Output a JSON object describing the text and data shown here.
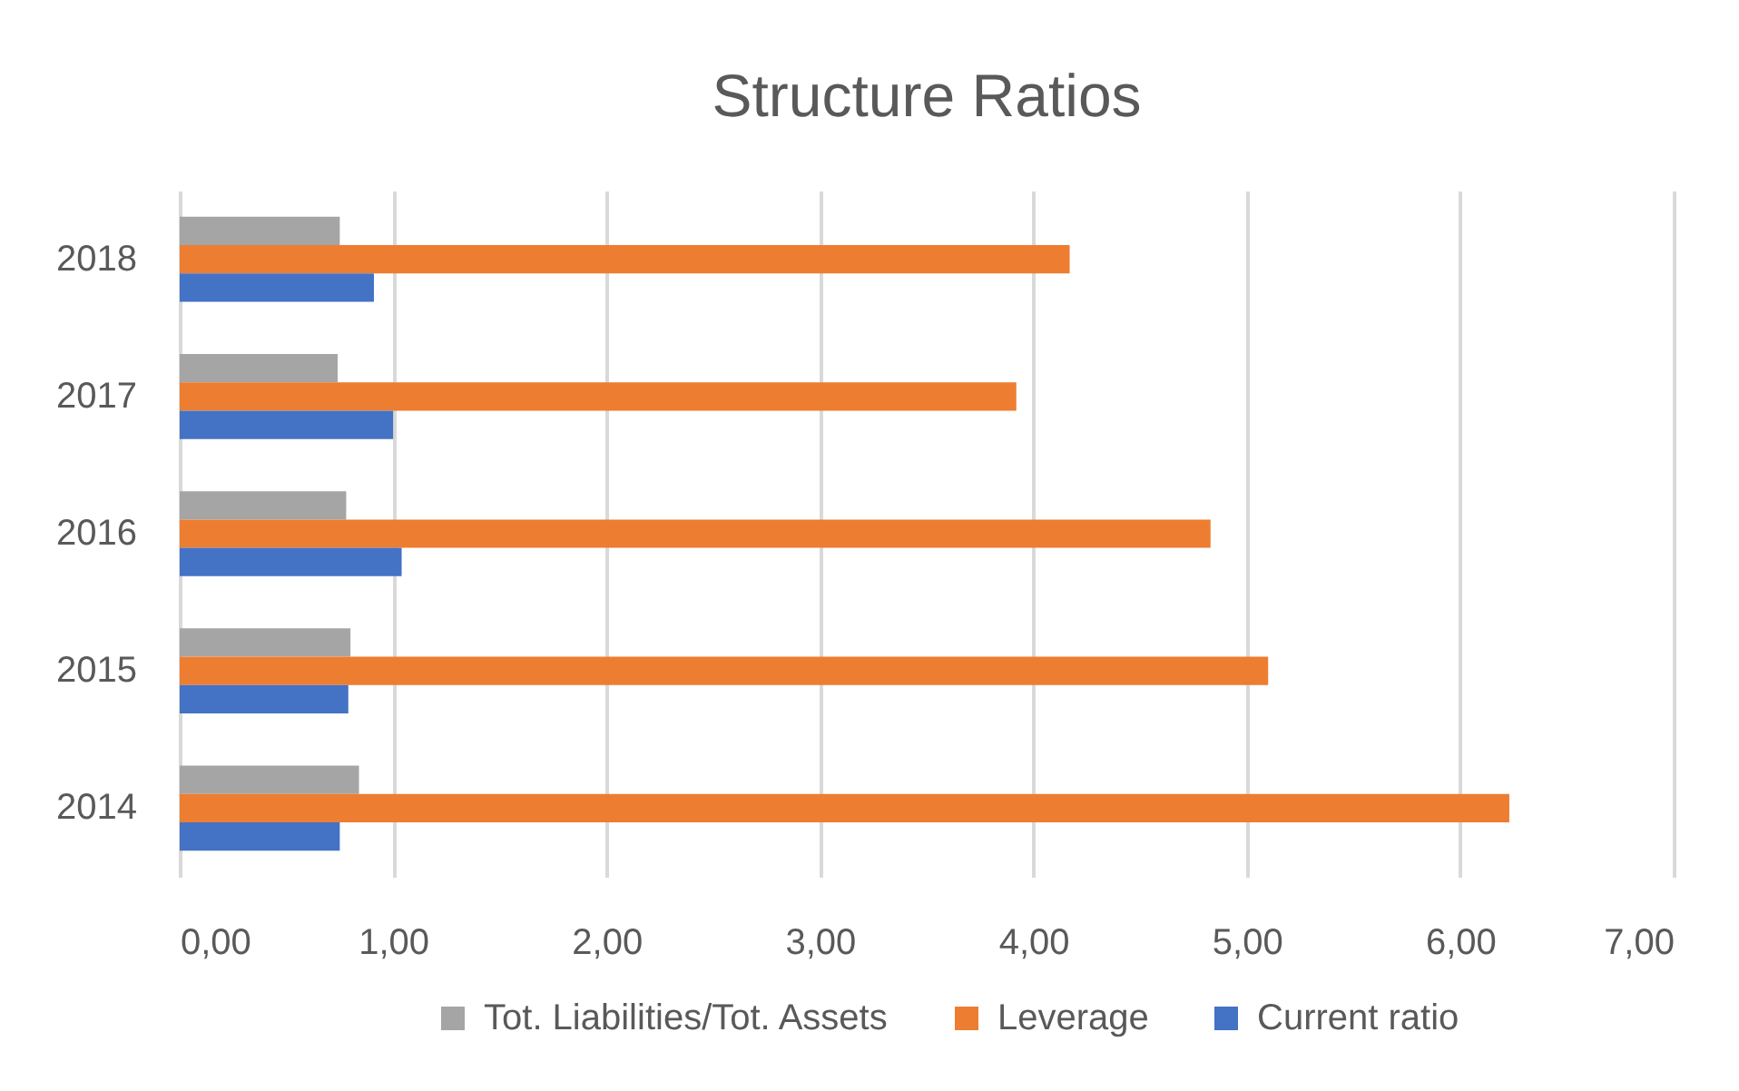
{
  "chart_data": {
    "type": "bar",
    "orientation": "horizontal",
    "title": "Structure Ratios",
    "categories": [
      "2018",
      "2017",
      "2016",
      "2015",
      "2014"
    ],
    "series": [
      {
        "name": "Tot. Liabilities/Tot. Assets",
        "color": "#a5a5a5",
        "values": [
          0.75,
          0.74,
          0.78,
          0.8,
          0.84
        ]
      },
      {
        "name": "Leverage",
        "color": "#ed7d31",
        "values": [
          4.17,
          3.92,
          4.83,
          5.1,
          6.23
        ]
      },
      {
        "name": "Current ratio",
        "color": "#4472c4",
        "values": [
          0.91,
          1.0,
          1.04,
          0.79,
          0.75
        ]
      }
    ],
    "xlim": [
      0,
      7
    ],
    "xticks": [
      {
        "value": 0,
        "label": "0,00"
      },
      {
        "value": 1,
        "label": "1,00"
      },
      {
        "value": 2,
        "label": "2,00"
      },
      {
        "value": 3,
        "label": "3,00"
      },
      {
        "value": 4,
        "label": "4,00"
      },
      {
        "value": 5,
        "label": "5,00"
      },
      {
        "value": 6,
        "label": "6,00"
      },
      {
        "value": 7,
        "label": "7,00"
      }
    ],
    "grid": "x",
    "legend": "bottom"
  }
}
